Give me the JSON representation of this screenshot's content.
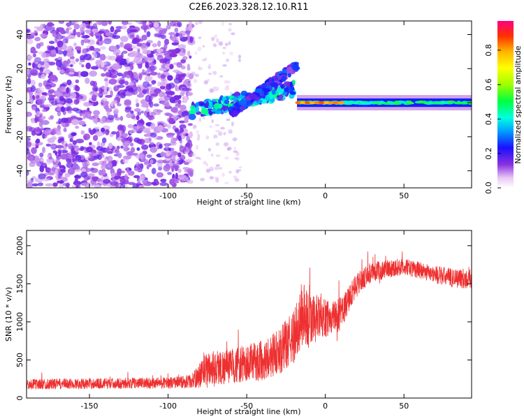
{
  "title": "C2E6.2023.328.12.10.R11",
  "colors": {
    "snr_line": "#ee3030",
    "axes": "#000000",
    "background": "#ffffff"
  },
  "chart_data": [
    {
      "type": "heatmap",
      "xlabel": "Height of straight line (km)",
      "ylabel": "Frequency (Hz)",
      "xlim": [
        -190,
        93
      ],
      "ylim": [
        -50,
        48
      ],
      "xticks": [
        -150,
        -100,
        -50,
        0,
        50
      ],
      "yticks": [
        -40,
        -20,
        0,
        20,
        40
      ],
      "colorbar": {
        "label": "Normalized spectral amplitude",
        "range": [
          0.0,
          0.97
        ],
        "ticks": [
          0.0,
          0.2,
          0.4,
          0.6,
          0.8
        ],
        "tick_labels": [
          "0.0",
          "0.2",
          "0.4",
          "0.6",
          "0.8"
        ]
      },
      "features": {
        "noise_region": {
          "x": [
            -190,
            -85
          ],
          "y": [
            -50,
            48
          ],
          "amplitude": 0.1
        },
        "descending_branch": {
          "x": [
            -85,
            -20
          ],
          "y_start": -5,
          "y_end": 8,
          "amplitude": 0.4
        },
        "rising_branch": {
          "x": [
            -60,
            -18
          ],
          "y_start": -6,
          "y_end": 22,
          "amplitude": 0.25
        },
        "carrier_line": {
          "x": [
            -18,
            93
          ],
          "y": 0,
          "amplitude": 0.45
        },
        "peak_segment": {
          "x": [
            -17,
            10
          ],
          "y": 0,
          "amplitude": 0.9
        }
      }
    },
    {
      "type": "line",
      "xlabel": "Height of straight line (km)",
      "ylabel": "SNR (10 * v/v)",
      "xlim": [
        -190,
        93
      ],
      "ylim": [
        0,
        2200
      ],
      "xticks": [
        -150,
        -100,
        -50,
        0,
        50
      ],
      "yticks": [
        0,
        500,
        1000,
        1500,
        2000
      ],
      "series": [
        {
          "name": "SNR",
          "x": [
            -190,
            -150,
            -100,
            -85,
            -75,
            -60,
            -50,
            -40,
            -30,
            -20,
            -15,
            -10,
            -5,
            0,
            10,
            20,
            30,
            40,
            50,
            60,
            70,
            80,
            93
          ],
          "values": [
            180,
            190,
            200,
            220,
            380,
            420,
            450,
            500,
            600,
            800,
            1100,
            1000,
            1050,
            1050,
            1100,
            1500,
            1650,
            1700,
            1720,
            1680,
            1620,
            1580,
            1560
          ],
          "noise_amplitude": [
            70,
            70,
            75,
            90,
            250,
            230,
            250,
            270,
            300,
            350,
            450,
            380,
            300,
            250,
            220,
            150,
            130,
            120,
            110,
            110,
            120,
            130,
            130
          ]
        }
      ]
    }
  ]
}
